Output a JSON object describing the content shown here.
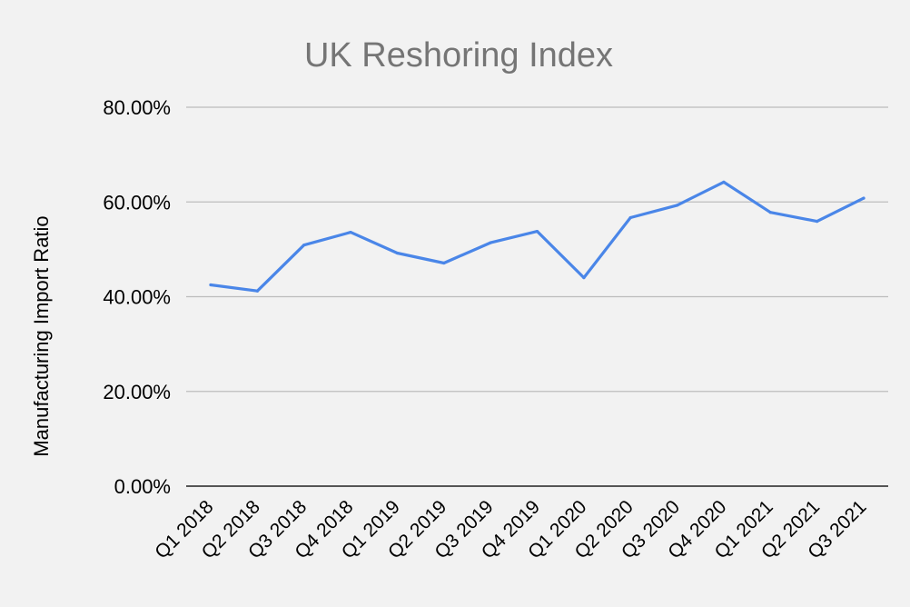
{
  "chart_data": {
    "type": "line",
    "title": "UK Reshoring Index",
    "xlabel": "",
    "ylabel": "Manufacturing Import Ratio",
    "categories": [
      "Q1 2018",
      "Q2 2018",
      "Q3 2018",
      "Q4 2018",
      "Q1 2019",
      "Q2 2019",
      "Q3 2019",
      "Q4 2019",
      "Q1 2020",
      "Q2 2020",
      "Q3 2020",
      "Q4 2020",
      "Q1 2021",
      "Q2 2021",
      "Q3 2021"
    ],
    "series": [
      {
        "values": [
          42.5,
          41.2,
          50.9,
          53.6,
          49.2,
          47.1,
          51.4,
          53.8,
          44.0,
          56.7,
          59.3,
          64.2,
          57.8,
          55.9,
          60.8
        ],
        "color": "#4a86e8"
      }
    ],
    "ylim": [
      0,
      80
    ],
    "yticks": [
      0,
      20,
      40,
      60,
      80
    ],
    "ytick_labels": [
      "0.00%",
      "20.00%",
      "40.00%",
      "60.00%",
      "80.00%"
    ],
    "grid": true,
    "legend": "none"
  }
}
